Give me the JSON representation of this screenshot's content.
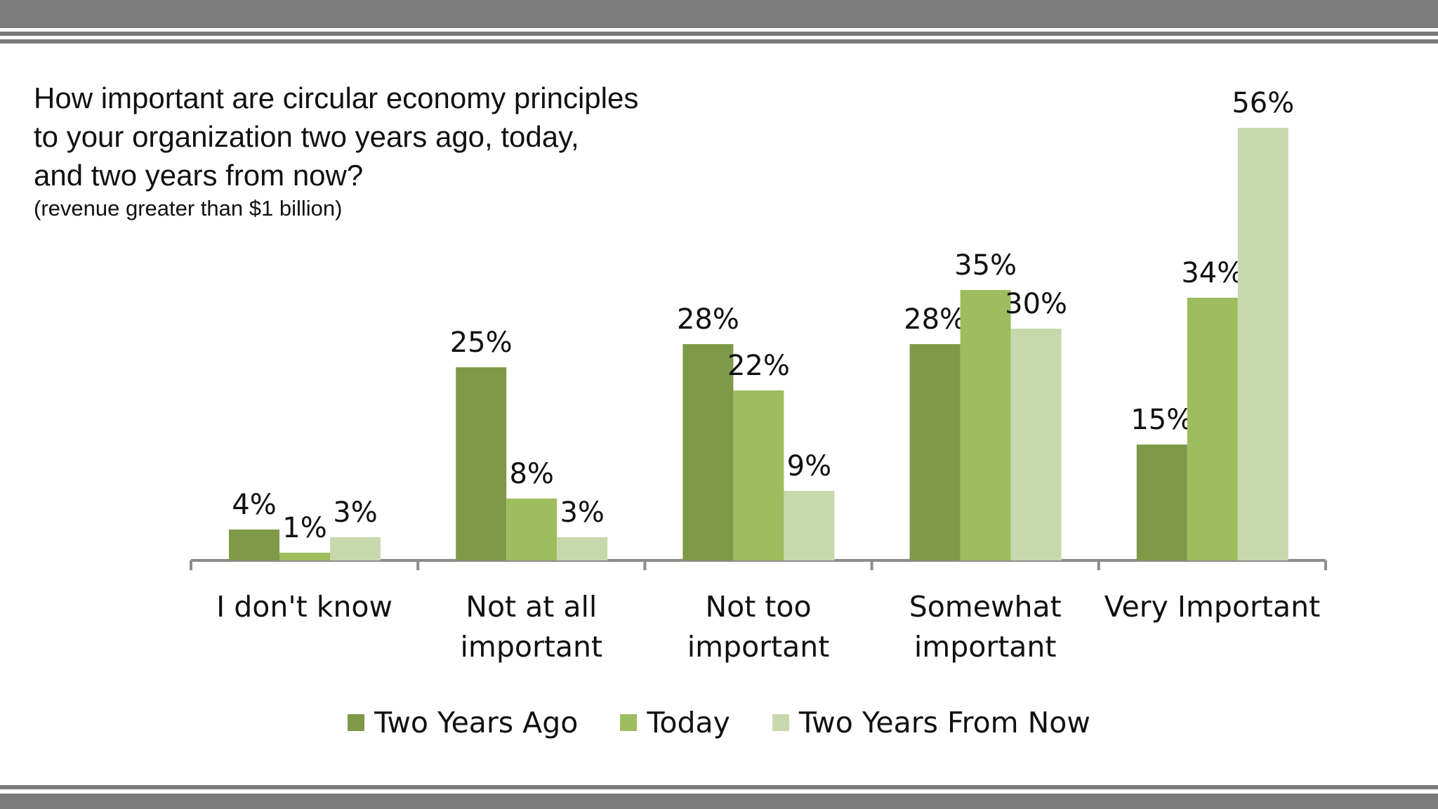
{
  "colors": {
    "frame": "#7b7b7b",
    "axis": "#8c8c8c",
    "series": [
      "#7e9a49",
      "#9dbd5e",
      "#c8d8ad"
    ]
  },
  "title_lines": [
    "How important are circular economy principles",
    "to your organization two years ago, today,",
    "and two years from now?"
  ],
  "subtitle": "(revenue greater than $1 billion)",
  "chart_data": {
    "type": "bar",
    "title": "How important are circular economy principles to your organization two years ago, today, and two years from now?",
    "subtitle": "(revenue greater than $1 billion)",
    "categories": [
      [
        "I don't know"
      ],
      [
        "Not at all",
        "important"
      ],
      [
        "Not too",
        "important"
      ],
      [
        "Somewhat",
        "important"
      ],
      [
        "Very Important"
      ]
    ],
    "series": [
      {
        "name": "Two Years Ago",
        "values": [
          4,
          25,
          28,
          28,
          15
        ],
        "labels": [
          "4%",
          "25%",
          "28%",
          "28%",
          "15%"
        ]
      },
      {
        "name": "Today",
        "values": [
          1,
          8,
          22,
          35,
          34
        ],
        "labels": [
          "1%",
          "8%",
          "22%",
          "35%",
          "34%"
        ]
      },
      {
        "name": "Two Years From Now",
        "values": [
          3,
          3,
          9,
          30,
          56
        ],
        "labels": [
          "3%",
          "3%",
          "9%",
          "30%",
          "56%"
        ]
      }
    ],
    "ylim": [
      0,
      56
    ],
    "xlabel": "",
    "ylabel": "",
    "grid": false,
    "legend_position": "bottom"
  }
}
